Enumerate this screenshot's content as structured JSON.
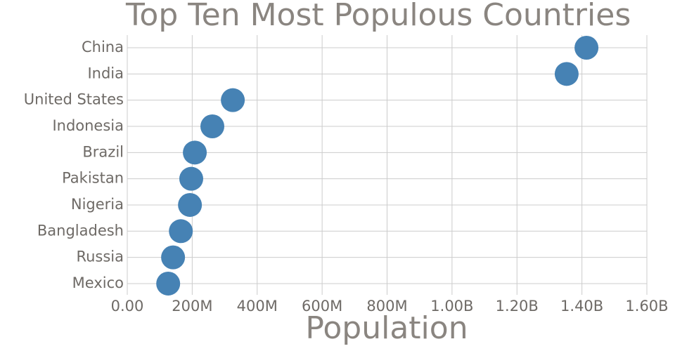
{
  "chart_data": {
    "type": "dot",
    "title": "Top Ten Most Populous Countries",
    "x_label": "Population",
    "categories": [
      "China",
      "India",
      "United States",
      "Indonesia",
      "Brazil",
      "Pakistan",
      "Nigeria",
      "Bangladesh",
      "Russia",
      "Mexico"
    ],
    "values": [
      1414000000,
      1353000000,
      325000000,
      262000000,
      208000000,
      197000000,
      193000000,
      165000000,
      141000000,
      126000000
    ],
    "color": "#4682b4",
    "xlim": [
      0,
      1600000000
    ],
    "xticks": [
      {
        "value": 0,
        "label": "0.00"
      },
      {
        "value": 200000000,
        "label": "200M"
      },
      {
        "value": 400000000,
        "label": "400M"
      },
      {
        "value": 600000000,
        "label": "600M"
      },
      {
        "value": 800000000,
        "label": "800M"
      },
      {
        "value": 1000000000,
        "label": "1.00B"
      },
      {
        "value": 1200000000,
        "label": "1.20B"
      },
      {
        "value": 1400000000,
        "label": "1.40B"
      },
      {
        "value": 1600000000,
        "label": "1.60B"
      }
    ],
    "grid": true
  }
}
